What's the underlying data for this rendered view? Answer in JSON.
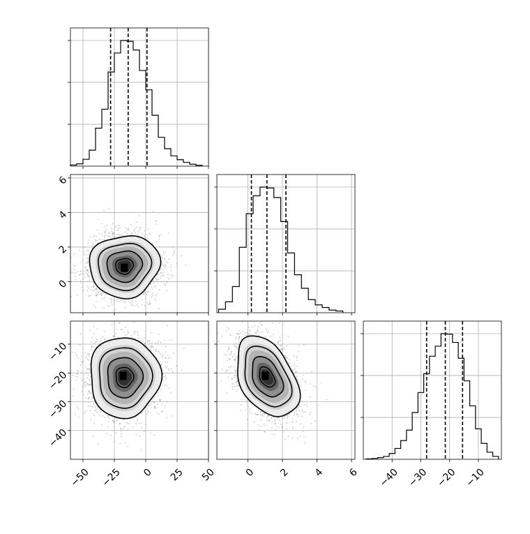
{
  "chart_data": {
    "type": "corner",
    "grid": true,
    "parameters": [
      {
        "range": [
          -60,
          50
        ],
        "ticks": [
          -50,
          -25,
          0,
          25,
          50
        ],
        "tick_labels": [
          "−50",
          "−25",
          "0",
          "25",
          "50"
        ],
        "quantiles": [
          -28,
          -14,
          1
        ],
        "histogram": {
          "bin_edges": [
            -60,
            -55,
            -50,
            -45,
            -40,
            -35,
            -30,
            -25,
            -20,
            -15,
            -10,
            -5,
            0,
            5,
            10,
            15,
            20,
            25,
            30,
            35,
            40,
            45
          ],
          "counts": [
            3,
            6,
            18,
            42,
            100,
            150,
            248,
            298,
            331,
            329,
            306,
            252,
            201,
            134,
            76,
            46,
            27,
            17,
            10,
            5,
            2
          ],
          "max": 331
        }
      },
      {
        "range": [
          -1.8,
          6.2
        ],
        "ticks": [
          0,
          2,
          4,
          6
        ],
        "tick_labels": [
          "0",
          "2",
          "4",
          "6"
        ],
        "quantiles": [
          0.2,
          1.1,
          2.2
        ],
        "histogram": {
          "bin_edges": [
            -1.7,
            -1.3,
            -0.9,
            -0.5,
            -0.1,
            0.3,
            0.7,
            1.1,
            1.5,
            1.9,
            2.3,
            2.7,
            3.1,
            3.5,
            3.9,
            4.3,
            4.7,
            5.1,
            5.5
          ],
          "counts": [
            8,
            25,
            60,
            150,
            227,
            268,
            288,
            286,
            264,
            209,
            137,
            87,
            56,
            30,
            18,
            12,
            6,
            4
          ],
          "max": 288
        }
      },
      {
        "range": [
          -50,
          -2
        ],
        "ticks": [
          -40,
          -30,
          -20,
          -10
        ],
        "tick_labels": [
          "−40",
          "−30",
          "−20",
          "−10"
        ],
        "quantiles": [
          -28,
          -21.5,
          -15.5
        ],
        "histogram": {
          "bin_edges": [
            -49,
            -47,
            -45,
            -43,
            -41,
            -39,
            -37,
            -35,
            -33,
            -31,
            -29,
            -27,
            -25,
            -23,
            -21,
            -19,
            -17,
            -15,
            -13,
            -11,
            -9,
            -7,
            -5,
            -3
          ],
          "counts": [
            1,
            2,
            4,
            7,
            14,
            26,
            45,
            70,
            112,
            160,
            205,
            247,
            271,
            301,
            300,
            280,
            242,
            188,
            128,
            73,
            38,
            17,
            7
          ],
          "max": 301
        }
      }
    ],
    "pairs": [
      {
        "x_param": 0,
        "y_param": 1,
        "center": [
          -17,
          0.9
        ],
        "spread": [
          14,
          0.9
        ],
        "correlation": 0.05,
        "peak_marker": [
          -17,
          0.8
        ]
      },
      {
        "x_param": 0,
        "y_param": 2,
        "center": [
          -17,
          -21.5
        ],
        "spread": [
          14,
          7
        ],
        "correlation": 0.0,
        "peak_marker": [
          -18,
          -21
        ]
      },
      {
        "x_param": 1,
        "y_param": 2,
        "center": [
          1.1,
          -21.5
        ],
        "spread": [
          0.9,
          7
        ],
        "correlation": -0.4,
        "peak_marker": [
          1.0,
          -21
        ]
      }
    ],
    "contour_levels": [
      "0.5σ",
      "1σ",
      "1.5σ",
      "2σ"
    ]
  }
}
